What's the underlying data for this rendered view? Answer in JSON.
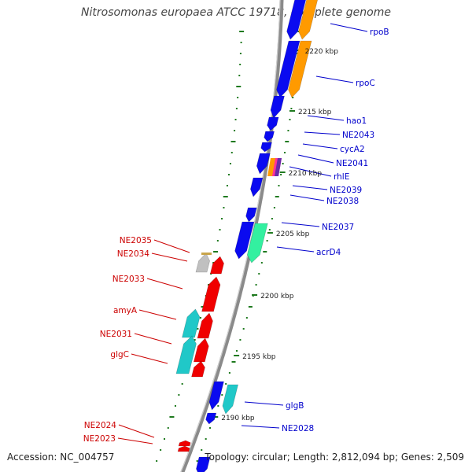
{
  "title": "Nitrosomonas europaea ATCC 19718, complete genome",
  "accession": "Accession: NC_004757",
  "topology": "Topology: circular; Length: 2,812,094 bp; Genes: 2,509",
  "colors": {
    "backbone": "#8a8a8a",
    "ticks": "#1f7a1f",
    "forward_label": "#0000cc",
    "reverse_label": "#cc0000",
    "blue": "#0a0af0",
    "orange": "#ff9a00",
    "red": "#f00000",
    "cyan": "#20c8c8",
    "green": "#33f0a0",
    "gray": "#c0c0c0",
    "pink": "#ff3399"
  },
  "kbp_ticks": [
    "2220 kbp",
    "2215 kbp",
    "2210 kbp",
    "2205 kbp",
    "2200 kbp",
    "2195 kbp",
    "2190 kbp"
  ],
  "forward_genes": [
    "rpoB",
    "rpoC",
    "hao1",
    "NE2043",
    "cycA2",
    "NE2041",
    "rhlE",
    "NE2039",
    "NE2038",
    "NE2037",
    "acrD4",
    "glgB",
    "NE2028"
  ],
  "reverse_genes": [
    "NE2035",
    "NE2034",
    "NE2033",
    "amyA",
    "NE2031",
    "glgC",
    "NE2024",
    "NE2023"
  ]
}
